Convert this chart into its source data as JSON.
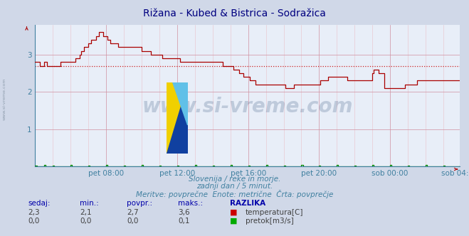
{
  "title": "Rižana - Kubed & Bistrica - Sodražica",
  "title_color": "#000080",
  "bg_color": "#d0d8e8",
  "plot_bg_color": "#e8eef8",
  "grid_color_major": "#d090a0",
  "grid_color_minor": "#e8c0c8",
  "xlabel_color": "#4080a0",
  "text_color": "#4080a0",
  "watermark": "www.si-vreme.com",
  "subtitle1": "Slovenija / reke in morje.",
  "subtitle2": "zadnji dan / 5 minut.",
  "subtitle3": "Meritve: povprečne  Enote: metrične  Črta: povprečje",
  "xlabels": [
    "pet 08:00",
    "pet 12:00",
    "pet 16:00",
    "pet 20:00",
    "sob 00:00",
    "sob 04:00"
  ],
  "ylim": [
    0,
    3.8
  ],
  "yticks": [
    1,
    2,
    3
  ],
  "avg_line": 2.7,
  "avg_line_color": "#cc2020",
  "temp_color": "#aa0000",
  "flow_color": "#008800",
  "sedaj_temp": "2,3",
  "min_temp": "2,1",
  "povpr_temp": "2,7",
  "maks_temp": "3,6",
  "sedaj_flow": "0,0",
  "min_flow": "0,0",
  "povpr_flow": "0,0",
  "maks_flow": "0,1",
  "n_points": 288,
  "temp_data": [
    2.8,
    2.8,
    2.8,
    2.7,
    2.7,
    2.7,
    2.8,
    2.8,
    2.7,
    2.7,
    2.7,
    2.7,
    2.7,
    2.7,
    2.7,
    2.7,
    2.7,
    2.8,
    2.8,
    2.8,
    2.8,
    2.8,
    2.8,
    2.8,
    2.8,
    2.8,
    2.8,
    2.9,
    2.9,
    2.9,
    3.0,
    3.1,
    3.1,
    3.2,
    3.2,
    3.2,
    3.3,
    3.3,
    3.4,
    3.4,
    3.4,
    3.5,
    3.5,
    3.6,
    3.6,
    3.6,
    3.5,
    3.5,
    3.5,
    3.4,
    3.4,
    3.3,
    3.3,
    3.3,
    3.3,
    3.3,
    3.2,
    3.2,
    3.2,
    3.2,
    3.2,
    3.2,
    3.2,
    3.2,
    3.2,
    3.2,
    3.2,
    3.2,
    3.2,
    3.2,
    3.2,
    3.2,
    3.1,
    3.1,
    3.1,
    3.1,
    3.1,
    3.1,
    3.0,
    3.0,
    3.0,
    3.0,
    3.0,
    3.0,
    3.0,
    3.0,
    2.9,
    2.9,
    2.9,
    2.9,
    2.9,
    2.9,
    2.9,
    2.9,
    2.9,
    2.9,
    2.9,
    2.9,
    2.8,
    2.8,
    2.8,
    2.8,
    2.8,
    2.8,
    2.8,
    2.8,
    2.8,
    2.8,
    2.8,
    2.8,
    2.8,
    2.8,
    2.8,
    2.8,
    2.8,
    2.8,
    2.8,
    2.8,
    2.8,
    2.8,
    2.8,
    2.8,
    2.8,
    2.8,
    2.8,
    2.8,
    2.8,
    2.7,
    2.7,
    2.7,
    2.7,
    2.7,
    2.7,
    2.7,
    2.6,
    2.6,
    2.6,
    2.6,
    2.5,
    2.5,
    2.5,
    2.4,
    2.4,
    2.4,
    2.4,
    2.3,
    2.3,
    2.3,
    2.3,
    2.2,
    2.2,
    2.2,
    2.2,
    2.2,
    2.2,
    2.2,
    2.2,
    2.2,
    2.2,
    2.2,
    2.2,
    2.2,
    2.2,
    2.2,
    2.2,
    2.2,
    2.2,
    2.2,
    2.2,
    2.1,
    2.1,
    2.1,
    2.1,
    2.1,
    2.1,
    2.2,
    2.2,
    2.2,
    2.2,
    2.2,
    2.2,
    2.2,
    2.2,
    2.2,
    2.2,
    2.2,
    2.2,
    2.2,
    2.2,
    2.2,
    2.2,
    2.2,
    2.2,
    2.3,
    2.3,
    2.3,
    2.3,
    2.3,
    2.4,
    2.4,
    2.4,
    2.4,
    2.4,
    2.4,
    2.4,
    2.4,
    2.4,
    2.4,
    2.4,
    2.4,
    2.4,
    2.3,
    2.3,
    2.3,
    2.3,
    2.3,
    2.3,
    2.3,
    2.3,
    2.3,
    2.3,
    2.3,
    2.3,
    2.3,
    2.3,
    2.3,
    2.3,
    2.3,
    2.5,
    2.6,
    2.6,
    2.6,
    2.5,
    2.5,
    2.5,
    2.5,
    2.1,
    2.1,
    2.1,
    2.1,
    2.1,
    2.1,
    2.1,
    2.1,
    2.1,
    2.1,
    2.1,
    2.1,
    2.1,
    2.1,
    2.2,
    2.2,
    2.2,
    2.2,
    2.2,
    2.2,
    2.2,
    2.2,
    2.3,
    2.3,
    2.3,
    2.3,
    2.3,
    2.3,
    2.3,
    2.3,
    2.3,
    2.3,
    2.3,
    2.3,
    2.3,
    2.3,
    2.3,
    2.3,
    2.3,
    2.3,
    2.3,
    2.3,
    2.3,
    2.3,
    2.3,
    2.3,
    2.3,
    2.3,
    2.3,
    2.3,
    2.3,
    2.3
  ],
  "flow_data_sparse": [
    [
      0,
      0.02
    ],
    [
      6,
      0.03
    ],
    [
      12,
      0.02
    ],
    [
      24,
      0.03
    ],
    [
      36,
      0.02
    ],
    [
      48,
      0.03
    ],
    [
      60,
      0.02
    ],
    [
      72,
      0.03
    ],
    [
      84,
      0.02
    ],
    [
      96,
      0.02
    ],
    [
      108,
      0.03
    ],
    [
      120,
      0.02
    ],
    [
      132,
      0.03
    ],
    [
      144,
      0.02
    ],
    [
      156,
      0.03
    ],
    [
      168,
      0.02
    ],
    [
      180,
      0.03
    ],
    [
      192,
      0.02
    ],
    [
      204,
      0.03
    ],
    [
      216,
      0.02
    ],
    [
      228,
      0.04
    ],
    [
      240,
      0.03
    ],
    [
      252,
      0.02
    ],
    [
      264,
      0.03
    ],
    [
      276,
      0.02
    ],
    [
      287,
      0.02
    ]
  ]
}
